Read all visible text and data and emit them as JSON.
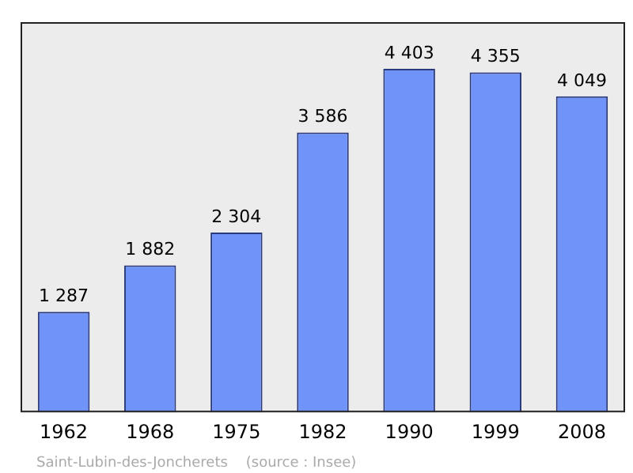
{
  "chart_data": {
    "type": "bar",
    "categories": [
      "1962",
      "1968",
      "1975",
      "1982",
      "1990",
      "1999",
      "2008"
    ],
    "values": [
      1287,
      1882,
      2304,
      3586,
      4403,
      4355,
      4049
    ],
    "value_labels": [
      "1 287",
      "1 882",
      "2 304",
      "3 586",
      "4 403",
      "4 355",
      "4 049"
    ],
    "color": "#7093fa",
    "relative": false,
    "grid": false,
    "legend": false,
    "annotations": [
      "Saint-Lubin-des-Joncherets    (source : Insee)"
    ]
  }
}
